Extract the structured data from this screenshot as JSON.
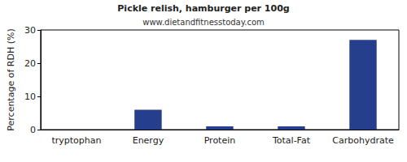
{
  "chart_data": {
    "type": "bar",
    "title": "Pickle relish, hamburger per 100g",
    "subtitle": "www.dietandfitnesstoday.com",
    "y_label": "Percentage of RDH (%)",
    "categories": [
      "tryptophan",
      "Energy",
      "Protein",
      "Total-Fat",
      "Carbohydrate"
    ],
    "values": [
      0,
      6,
      1,
      1,
      27
    ],
    "color": "#263f8c",
    "ylim": [
      0,
      30
    ],
    "yticks": [
      0,
      10,
      20,
      30
    ],
    "grid": false
  }
}
